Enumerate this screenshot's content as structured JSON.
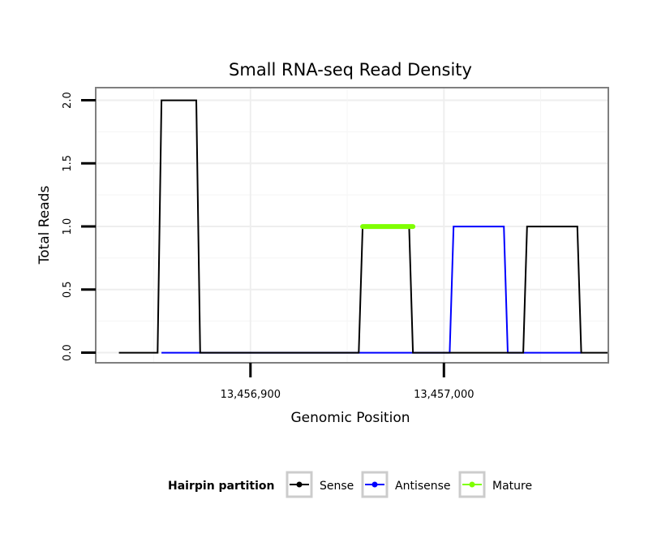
{
  "chart_data": {
    "type": "line",
    "title": "Small RNA-seq Read Density",
    "xlabel": "Genomic Position",
    "ylabel": "Total Reads",
    "xlim": [
      13456820,
      13457085
    ],
    "ylim": [
      -0.08,
      2.1
    ],
    "x_ticks": [
      13456900,
      13457000
    ],
    "x_tick_labels": [
      "13,456,900",
      "13,457,000"
    ],
    "y_ticks": [
      0,
      0.5,
      1,
      1.5,
      2
    ],
    "y_tick_labels": [
      "0.0",
      "0.5",
      "1.0",
      "1.5",
      "2.0"
    ],
    "grid": true,
    "legend": {
      "title": "Hairpin partition",
      "position": "bottom",
      "entries": [
        "Sense",
        "Antisense",
        "Mature"
      ]
    },
    "series": [
      {
        "name": "Sense",
        "color": "#000000",
        "x": [
          13456832,
          13456852,
          13456854,
          13456872,
          13456874,
          13456956,
          13456958,
          13456982,
          13456984,
          13457041,
          13457043,
          13457069,
          13457071,
          13457085
        ],
        "values": [
          0,
          0,
          2,
          2,
          0,
          0,
          1,
          1,
          0,
          0,
          1,
          1,
          0,
          0
        ]
      },
      {
        "name": "Antisense",
        "color": "#0000ff",
        "x": [
          13456854,
          13456874,
          13456958,
          13456984,
          13457003,
          13457005,
          13457031,
          13457033,
          13457043,
          13457071
        ],
        "values": [
          0,
          0,
          0,
          0,
          0,
          1,
          1,
          0,
          0,
          0
        ]
      },
      {
        "name": "Mature",
        "color": "#7fff00",
        "x": [
          13456958,
          13456984
        ],
        "values": [
          1,
          1
        ]
      }
    ]
  }
}
